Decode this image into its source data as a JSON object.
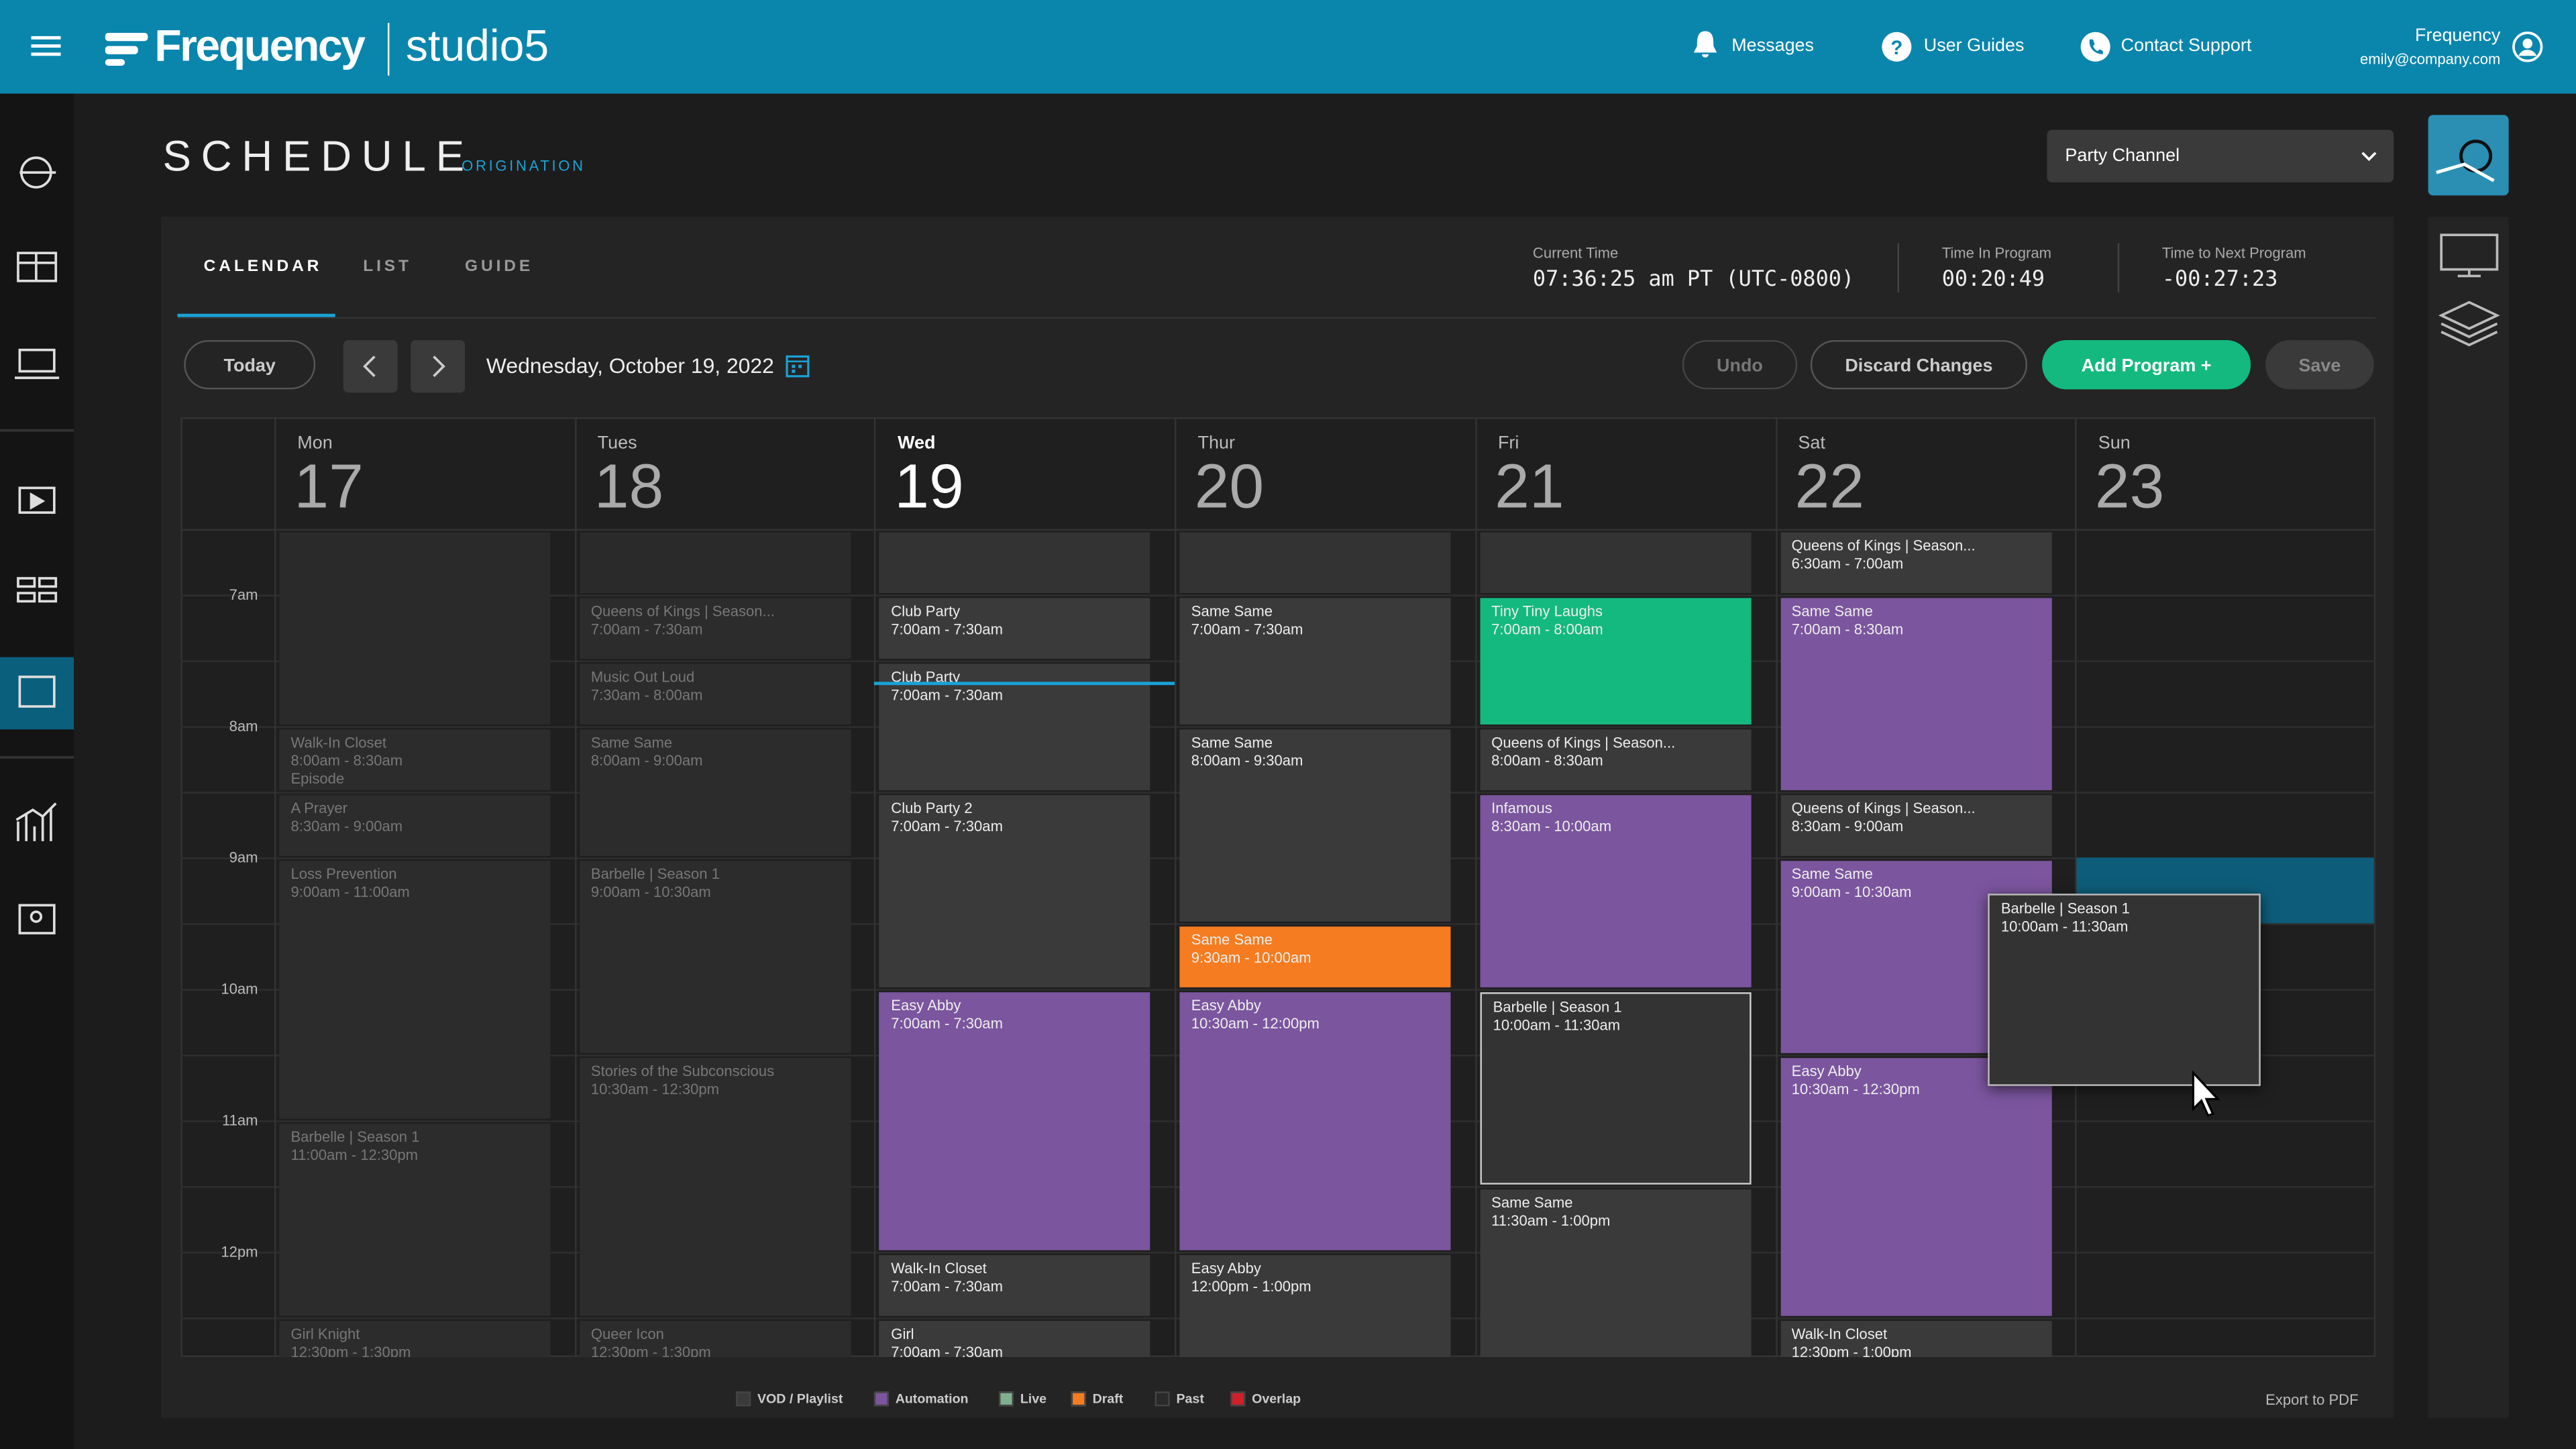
{
  "header": {
    "brand": "Frequency",
    "product": "studio5",
    "nav": [
      "Messages",
      "User Guides",
      "Contact Support"
    ],
    "user_name": "Frequency",
    "user_email": "emily@company.com"
  },
  "page": {
    "title": "SCHEDULE",
    "subtitle": "ORIGINATION",
    "channel": "Party Channel"
  },
  "tabs": [
    "CALENDAR",
    "LIST",
    "GUIDE"
  ],
  "status": [
    {
      "label": "Current Time",
      "value": "07:36:25 am PT (UTC-0800)"
    },
    {
      "label": "Time In Program",
      "value": "00:20:49"
    },
    {
      "label": "Time to Next Program",
      "value": "-00:27:23"
    }
  ],
  "toolbar": {
    "today": "Today",
    "date": "Wednesday, October 19, 2022",
    "buttons": [
      "Undo",
      "Discard Changes",
      "Add Program +",
      "Save"
    ]
  },
  "times": [
    "7am",
    "8am",
    "9am",
    "10am",
    "11am",
    "12pm"
  ],
  "days": [
    {
      "name": "Mon",
      "date": "17",
      "events": [
        {
          "title": "Walk-In Closet",
          "time": "8:00am - 8:30am",
          "note": "Episode",
          "color": "#2c2c2c",
          "past": true
        },
        {
          "title": "A Prayer",
          "time": "8:30am - 9:00am",
          "color": "#2c2c2c",
          "past": true
        },
        {
          "title": "Loss Prevention",
          "time": "9:00am - 11:00am",
          "color": "#2c2c2c",
          "past": true
        },
        {
          "title": "Barbelle | Season 1",
          "time": "11:00am - 12:30pm",
          "color": "#2c2c2c",
          "past": true
        },
        {
          "title": "Girl Knight",
          "time": "12:30pm - 1:30pm",
          "color": "#2c2c2c",
          "past": true
        }
      ]
    },
    {
      "name": "Tues",
      "date": "18",
      "events": [
        {
          "title": "Queens of Kings | Season...",
          "time": "7:00am - 7:30am",
          "color": "#2c2c2c",
          "past": true
        },
        {
          "title": "Music Out Loud",
          "time": "7:30am - 8:00am",
          "color": "#2c2c2c",
          "past": true
        },
        {
          "title": "Same Same",
          "time": "8:00am - 9:00am",
          "color": "#2c2c2c",
          "past": true
        },
        {
          "title": "Barbelle | Season 1",
          "time": "9:00am - 10:30am",
          "color": "#2c2c2c",
          "past": true
        },
        {
          "title": "Stories of the Subconscious",
          "time": "10:30am - 12:30pm",
          "color": "#2c2c2c",
          "past": true
        },
        {
          "title": "Queer Icon",
          "time": "12:30pm - 1:30pm",
          "color": "#2c2c2c",
          "past": true
        }
      ]
    },
    {
      "name": "Wed",
      "date": "19",
      "events": [
        {
          "title": "Club Party",
          "time": "7:00am - 7:30am",
          "color": "#3a3a3a"
        },
        {
          "title": "Club Party",
          "time": "7:00am - 7:30am",
          "color": "#3a3a3a"
        },
        {
          "title": "Club Party 2",
          "time": "7:00am - 7:30am",
          "color": "#3a3a3a"
        },
        {
          "title": "Easy Abby",
          "time": "7:00am - 7:30am",
          "color": "#7b559e"
        },
        {
          "title": "Walk-In Closet",
          "time": "7:00am - 7:30am",
          "color": "#3a3a3a"
        },
        {
          "title": "Girl",
          "time": "7:00am - 7:30am",
          "color": "#3a3a3a"
        }
      ]
    },
    {
      "name": "Thur",
      "date": "20",
      "events": [
        {
          "title": "Same Same",
          "time": "7:00am - 7:30am",
          "color": "#3a3a3a"
        },
        {
          "title": "Same Same",
          "time": "8:00am - 9:30am",
          "color": "#3a3a3a"
        },
        {
          "title": "Same Same",
          "time": "9:30am - 10:00am",
          "color": "#f57c20"
        },
        {
          "title": "Easy Abby",
          "time": "10:30am - 12:00pm",
          "color": "#7b559e"
        },
        {
          "title": "Easy Abby",
          "time": "12:00pm - 1:00pm",
          "color": "#3a3a3a"
        }
      ]
    },
    {
      "name": "Fri",
      "date": "21",
      "events": [
        {
          "title": "Tiny Tiny Laughs",
          "time": "7:00am - 8:00am",
          "color": "#14b97f"
        },
        {
          "title": "Queens of Kings | Season...",
          "time": "8:00am - 8:30am",
          "color": "#3a3a3a"
        },
        {
          "title": "Infamous",
          "time": "8:30am - 10:00am",
          "color": "#7b559e"
        },
        {
          "title": "Barbelle | Season 1",
          "time": "10:00am - 11:30am",
          "color": "#333333",
          "selected": true
        },
        {
          "title": "Same Same",
          "time": "11:30am - 1:00pm",
          "color": "#3a3a3a"
        }
      ]
    },
    {
      "name": "Sat",
      "date": "22",
      "events": [
        {
          "title": "Queens of Kings | Season...",
          "time": "6:30am - 7:00am",
          "color": "#3a3a3a"
        },
        {
          "title": "Same Same",
          "time": "7:00am - 8:30am",
          "color": "#7b559e"
        },
        {
          "title": "Queens of Kings | Season...",
          "time": "8:30am - 9:00am",
          "color": "#3a3a3a"
        },
        {
          "title": "Same Same",
          "time": "9:00am - 10:30am",
          "color": "#7b559e"
        },
        {
          "title": "Easy Abby",
          "time": "10:30am - 12:30pm",
          "color": "#7b559e"
        },
        {
          "title": "Walk-In Closet",
          "time": "12:30pm - 1:00pm",
          "color": "#3a3a3a"
        }
      ]
    },
    {
      "name": "Sun",
      "date": "23",
      "events": []
    }
  ],
  "dragging": {
    "title": "Barbelle | Season 1",
    "time": "10:00am - 11:30am"
  },
  "legend": [
    {
      "label": "VOD / Playlist",
      "color": "#3a3a3a"
    },
    {
      "label": "Automation",
      "color": "#7b559e"
    },
    {
      "label": "Live",
      "color": "#7fb08f"
    },
    {
      "label": "Draft",
      "color": "#f57c20"
    },
    {
      "label": "Past",
      "color": "#2a2a2a"
    },
    {
      "label": "Overlap",
      "color": "#d0202a"
    }
  ],
  "export": "Export to PDF"
}
